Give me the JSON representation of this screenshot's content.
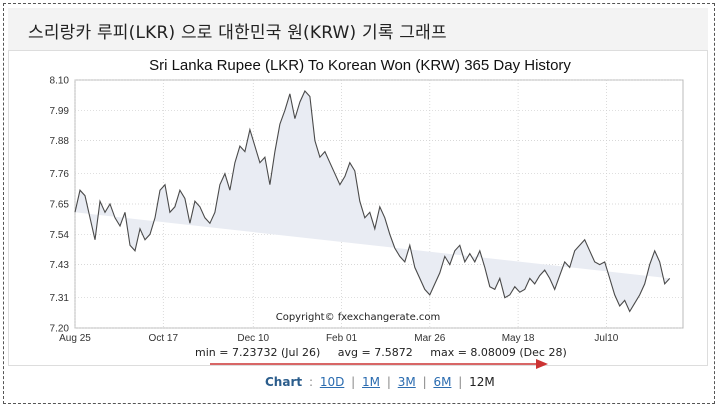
{
  "page_title": "스리랑카 루피(LKR) 으로 대한민국 원(KRW) 기록 그래프",
  "chart_data": {
    "type": "area",
    "title": "Sri Lanka Rupee (LKR) To Korean Won (KRW) 365 Day History",
    "ylim": [
      7.2,
      8.1
    ],
    "y_ticks": [
      "8.10",
      "7.99",
      "7.88",
      "7.76",
      "7.65",
      "7.54",
      "7.43",
      "7.31",
      "7.20"
    ],
    "x_ticks": [
      "Aug 25",
      "Oct 17",
      "Dec 10",
      "Feb 01",
      "Mar 26",
      "May 18",
      "Jul10"
    ],
    "x_tick_index": [
      0,
      53,
      107,
      160,
      213,
      266,
      319
    ],
    "series_index": [
      0,
      3,
      6,
      9,
      12,
      15,
      18,
      21,
      24,
      27,
      30,
      33,
      36,
      39,
      42,
      45,
      48,
      51,
      54,
      57,
      60,
      63,
      66,
      69,
      72,
      75,
      78,
      81,
      84,
      87,
      90,
      93,
      96,
      99,
      102,
      105,
      108,
      111,
      114,
      117,
      120,
      123,
      126,
      129,
      132,
      135,
      138,
      141,
      144,
      147,
      150,
      153,
      156,
      159,
      162,
      165,
      168,
      171,
      174,
      177,
      180,
      183,
      186,
      189,
      192,
      195,
      198,
      201,
      204,
      207,
      210,
      213,
      216,
      219,
      222,
      225,
      228,
      231,
      234,
      237,
      240,
      243,
      246,
      249,
      252,
      255,
      258,
      261,
      264,
      267,
      270,
      273,
      276,
      279,
      282,
      285,
      288,
      291,
      294,
      297,
      300,
      303,
      306,
      309,
      312,
      315,
      318,
      321,
      324,
      327,
      330,
      333,
      336,
      339,
      342,
      345,
      348,
      351,
      354,
      357,
      360,
      363
    ],
    "series_values": [
      7.62,
      7.7,
      7.68,
      7.6,
      7.52,
      7.66,
      7.62,
      7.65,
      7.6,
      7.57,
      7.62,
      7.5,
      7.48,
      7.56,
      7.52,
      7.54,
      7.6,
      7.7,
      7.72,
      7.62,
      7.64,
      7.7,
      7.67,
      7.58,
      7.66,
      7.64,
      7.6,
      7.58,
      7.62,
      7.72,
      7.76,
      7.7,
      7.8,
      7.86,
      7.84,
      7.92,
      7.86,
      7.8,
      7.82,
      7.72,
      7.84,
      7.94,
      7.99,
      8.05,
      7.96,
      8.02,
      8.06,
      8.04,
      7.88,
      7.82,
      7.84,
      7.8,
      7.76,
      7.72,
      7.75,
      7.8,
      7.77,
      7.66,
      7.6,
      7.62,
      7.56,
      7.64,
      7.6,
      7.54,
      7.49,
      7.46,
      7.44,
      7.5,
      7.42,
      7.38,
      7.34,
      7.32,
      7.36,
      7.4,
      7.46,
      7.43,
      7.48,
      7.5,
      7.44,
      7.47,
      7.44,
      7.48,
      7.42,
      7.35,
      7.34,
      7.38,
      7.31,
      7.32,
      7.35,
      7.33,
      7.34,
      7.38,
      7.36,
      7.39,
      7.41,
      7.38,
      7.34,
      7.39,
      7.44,
      7.42,
      7.48,
      7.5,
      7.52,
      7.48,
      7.44,
      7.43,
      7.44,
      7.38,
      7.32,
      7.28,
      7.3,
      7.26,
      7.29,
      7.32,
      7.36,
      7.43,
      7.48,
      7.44,
      7.36,
      7.38
    ],
    "stats": {
      "min": "min = 7.23732 (Jul 26)",
      "avg": "avg = 7.5872",
      "max": "max = 8.08009 (Dec 28)"
    },
    "watermark": "Copyright© fxexchangerate.com",
    "colors": {
      "line": "#4a4a4a",
      "fill": "#e9ecf3",
      "grid": "#cccccc",
      "arrow": "#cc3333",
      "axis_text": "#333333"
    }
  },
  "range_selector": {
    "label": "Chart",
    "options": [
      "10D",
      "1M",
      "3M",
      "6M"
    ],
    "current": "12M"
  }
}
